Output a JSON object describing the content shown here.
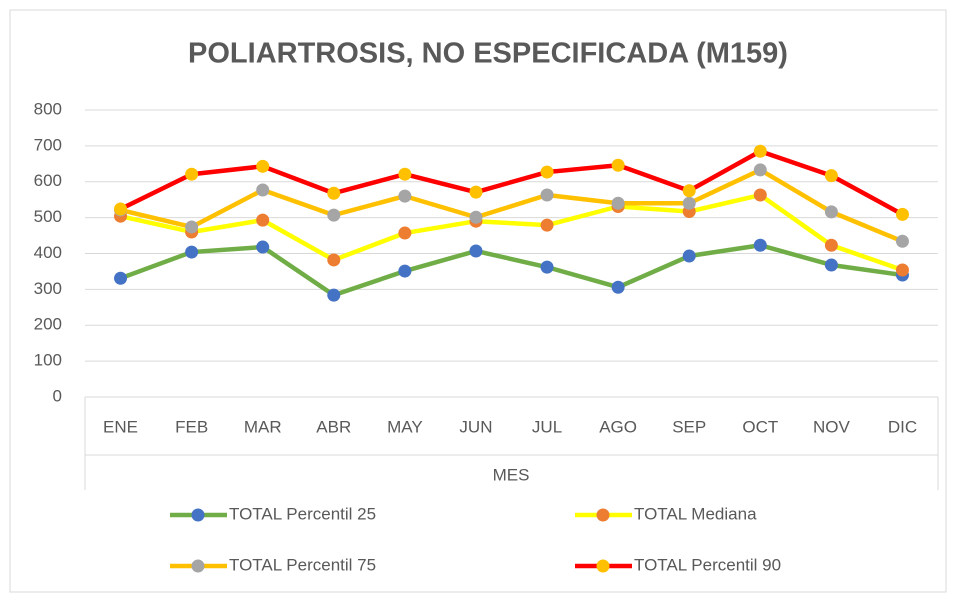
{
  "chart_data": {
    "type": "line",
    "title": "POLIARTROSIS, NO ESPECIFICADA (M159)",
    "x_label": "MES",
    "categories": [
      "ENE",
      "FEB",
      "MAR",
      "ABR",
      "MAY",
      "JUN",
      "JUL",
      "AGO",
      "SEP",
      "OCT",
      "NOV",
      "DIC"
    ],
    "series": [
      {
        "name": "TOTAL Percentil 25",
        "color": "#70ad47",
        "marker_color": "#4472c4",
        "values": [
          331,
          404,
          418,
          284,
          351,
          407,
          362,
          306,
          393,
          423,
          368,
          340
        ]
      },
      {
        "name": "TOTAL Mediana",
        "color": "#ffff00",
        "marker_color": "#ed7d31",
        "values": [
          504,
          460,
          493,
          382,
          457,
          490,
          479,
          531,
          517,
          563,
          423,
          354
        ]
      },
      {
        "name": "TOTAL Percentil 75",
        "color": "#ffc000",
        "marker_color": "#a5a5a5",
        "values": [
          521,
          474,
          577,
          507,
          560,
          501,
          563,
          540,
          540,
          633,
          516,
          434
        ]
      },
      {
        "name": "TOTAL Percentil 90",
        "color": "#ff0000",
        "marker_color": "#ffc000",
        "values": [
          524,
          621,
          643,
          568,
          621,
          571,
          627,
          646,
          575,
          685,
          617,
          509
        ]
      }
    ],
    "ylim": [
      0,
      800
    ],
    "yticks": [
      0,
      100,
      200,
      300,
      400,
      500,
      600,
      700,
      800
    ],
    "grid": true
  }
}
